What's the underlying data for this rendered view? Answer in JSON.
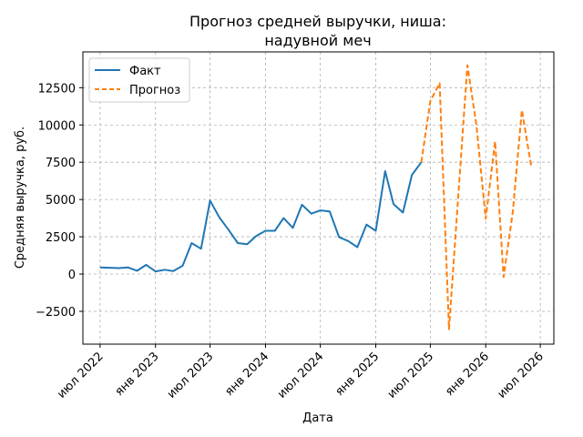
{
  "chart_data": {
    "type": "line",
    "title_lines": [
      "Прогноз средней выручки, ниша:",
      "надувной меч"
    ],
    "xlabel": "Дата",
    "ylabel": "Средняя выручка, руб.",
    "xlim": [
      "2022-05-05",
      "2026-08-15"
    ],
    "ylim": [
      -4700,
      14900
    ],
    "y_ticks": [
      -2500,
      0,
      2500,
      5000,
      7500,
      10000,
      12500
    ],
    "x_ticks": [
      {
        "date": "2022-07-01",
        "label": "июл 2022"
      },
      {
        "date": "2023-01-01",
        "label": "янв 2023"
      },
      {
        "date": "2023-07-01",
        "label": "июл 2023"
      },
      {
        "date": "2024-01-01",
        "label": "янв 2024"
      },
      {
        "date": "2024-07-01",
        "label": "июл 2024"
      },
      {
        "date": "2025-01-01",
        "label": "янв 2025"
      },
      {
        "date": "2025-07-01",
        "label": "июл 2025"
      },
      {
        "date": "2026-01-01",
        "label": "янв 2026"
      },
      {
        "date": "2026-07-01",
        "label": "июл 2026"
      }
    ],
    "grid": true,
    "legend_position": "top-left",
    "series": [
      {
        "name": "Факт",
        "color": "#1f77b4",
        "style": "solid",
        "x": [
          "2022-07-01",
          "2022-08-01",
          "2022-09-01",
          "2022-10-01",
          "2022-11-01",
          "2022-12-01",
          "2023-01-01",
          "2023-02-01",
          "2023-03-01",
          "2023-04-01",
          "2023-05-01",
          "2023-06-01",
          "2023-07-01",
          "2023-08-01",
          "2023-09-01",
          "2023-10-01",
          "2023-11-01",
          "2023-12-01",
          "2024-01-01",
          "2024-02-01",
          "2024-03-01",
          "2024-04-01",
          "2024-05-01",
          "2024-06-01",
          "2024-07-01",
          "2024-08-01",
          "2024-09-01",
          "2024-10-01",
          "2024-11-01",
          "2024-12-01",
          "2025-01-01",
          "2025-02-01",
          "2025-03-01",
          "2025-04-01",
          "2025-05-01",
          "2025-06-01"
        ],
        "y": [
          450,
          420,
          400,
          450,
          220,
          620,
          180,
          290,
          200,
          560,
          2080,
          1700,
          4930,
          3800,
          2950,
          2080,
          2000,
          2550,
          2900,
          2900,
          3750,
          3100,
          4650,
          4050,
          4270,
          4200,
          2480,
          2220,
          1800,
          3320,
          2900,
          6900,
          4700,
          4120,
          6650,
          7500
        ]
      },
      {
        "name": "Прогноз",
        "color": "#ff7f0e",
        "style": "dashed",
        "x": [
          "2025-06-01",
          "2025-07-01",
          "2025-08-01",
          "2025-09-01",
          "2025-10-01",
          "2025-11-01",
          "2025-12-01",
          "2026-01-01",
          "2026-02-01",
          "2026-03-01",
          "2026-04-01",
          "2026-05-01",
          "2026-06-01"
        ],
        "y": [
          7500,
          11600,
          12800,
          -3700,
          5000,
          14000,
          10000,
          3700,
          8900,
          -200,
          4200,
          11000,
          7200
        ]
      }
    ]
  }
}
